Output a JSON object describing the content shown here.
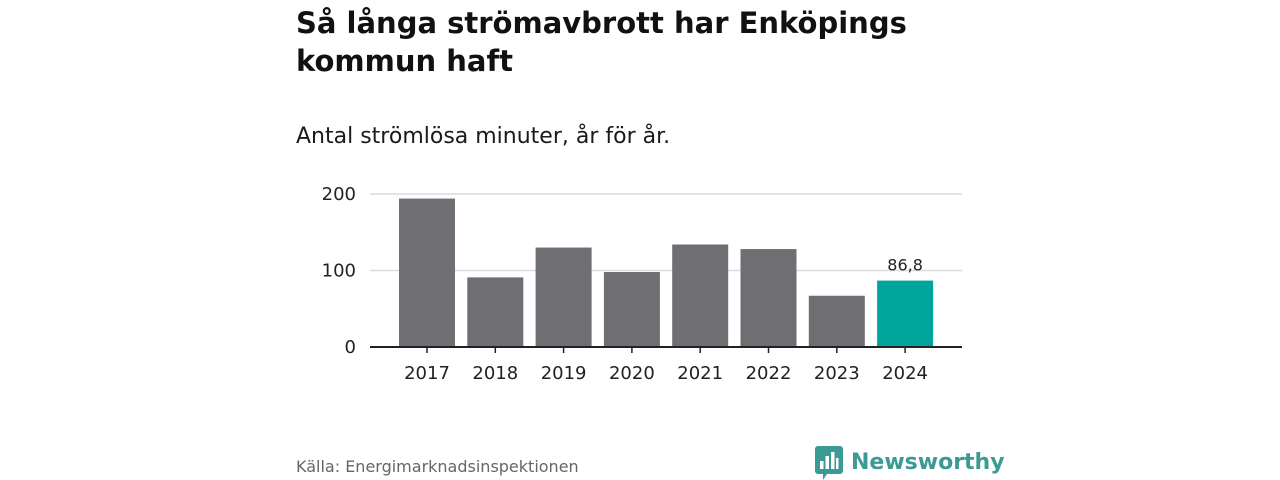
{
  "title": "Så långa strömavbrott har Enköpings kommun haft",
  "subtitle": "Antal strömlösa minuter, år för år.",
  "source": "Källa: Energimarknadsinspektionen",
  "brand": "Newsworthy",
  "colors": {
    "bar": "#6f6e73",
    "highlight": "#00a69c",
    "grid": "#dcdcdc",
    "axis": "#222222",
    "brand": "#3c9a94"
  },
  "chart_data": {
    "type": "bar",
    "title": "Så långa strömavbrott har Enköpings kommun haft",
    "subtitle": "Antal strömlösa minuter, år för år.",
    "xlabel": "",
    "ylabel": "",
    "categories": [
      "2017",
      "2018",
      "2019",
      "2020",
      "2021",
      "2022",
      "2023",
      "2024"
    ],
    "values": [
      194,
      91,
      130,
      98,
      134,
      128,
      67,
      86.8
    ],
    "highlight_index": 7,
    "highlight_label": "86,8",
    "ylim": [
      0,
      200
    ],
    "yticks": [
      0,
      100,
      200
    ],
    "ytick_labels": [
      "0",
      "100",
      "200"
    ],
    "grid": true,
    "legend": "none"
  }
}
